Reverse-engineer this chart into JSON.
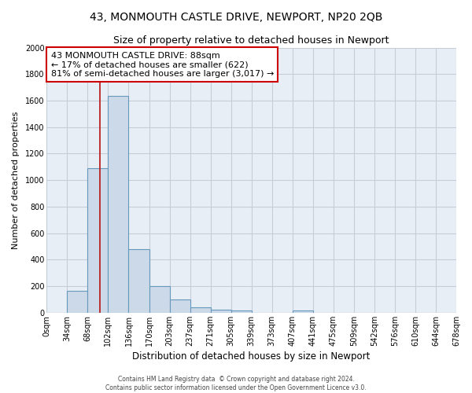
{
  "title": "43, MONMOUTH CASTLE DRIVE, NEWPORT, NP20 2QB",
  "subtitle": "Size of property relative to detached houses in Newport",
  "xlabel": "Distribution of detached houses by size in Newport",
  "ylabel": "Number of detached properties",
  "bar_color": "#ccd9e8",
  "bar_edge_color": "#6699bb",
  "annotation_line_color": "#bb2222",
  "annotation_box_edge": "#cc0000",
  "background_color": "#ffffff",
  "plot_bg_color": "#e8eef5",
  "grid_color": "#c5cdd8",
  "categories": [
    "0sqm",
    "34sqm",
    "68sqm",
    "102sqm",
    "136sqm",
    "170sqm",
    "203sqm",
    "237sqm",
    "271sqm",
    "305sqm",
    "339sqm",
    "373sqm",
    "407sqm",
    "441sqm",
    "475sqm",
    "509sqm",
    "542sqm",
    "576sqm",
    "610sqm",
    "644sqm",
    "678sqm"
  ],
  "values": [
    0,
    165,
    1090,
    1635,
    480,
    200,
    100,
    40,
    23,
    15,
    0,
    0,
    18,
    0,
    0,
    0,
    0,
    0,
    0,
    0,
    0
  ],
  "ylim": [
    0,
    2000
  ],
  "yticks": [
    0,
    200,
    400,
    600,
    800,
    1000,
    1200,
    1400,
    1600,
    1800,
    2000
  ],
  "annotation_text_line1": "43 MONMOUTH CASTLE DRIVE: 88sqm",
  "annotation_text_line2": "← 17% of detached houses are smaller (622)",
  "annotation_text_line3": "81% of semi-detached houses are larger (3,017) →",
  "footer_line1": "Contains HM Land Registry data  © Crown copyright and database right 2024.",
  "footer_line2": "Contains public sector information licensed under the Open Government Licence v3.0.",
  "title_fontsize": 10,
  "subtitle_fontsize": 9,
  "xlabel_fontsize": 8.5,
  "ylabel_fontsize": 8,
  "tick_fontsize": 7,
  "annotation_fontsize": 8,
  "footer_fontsize": 5.5
}
